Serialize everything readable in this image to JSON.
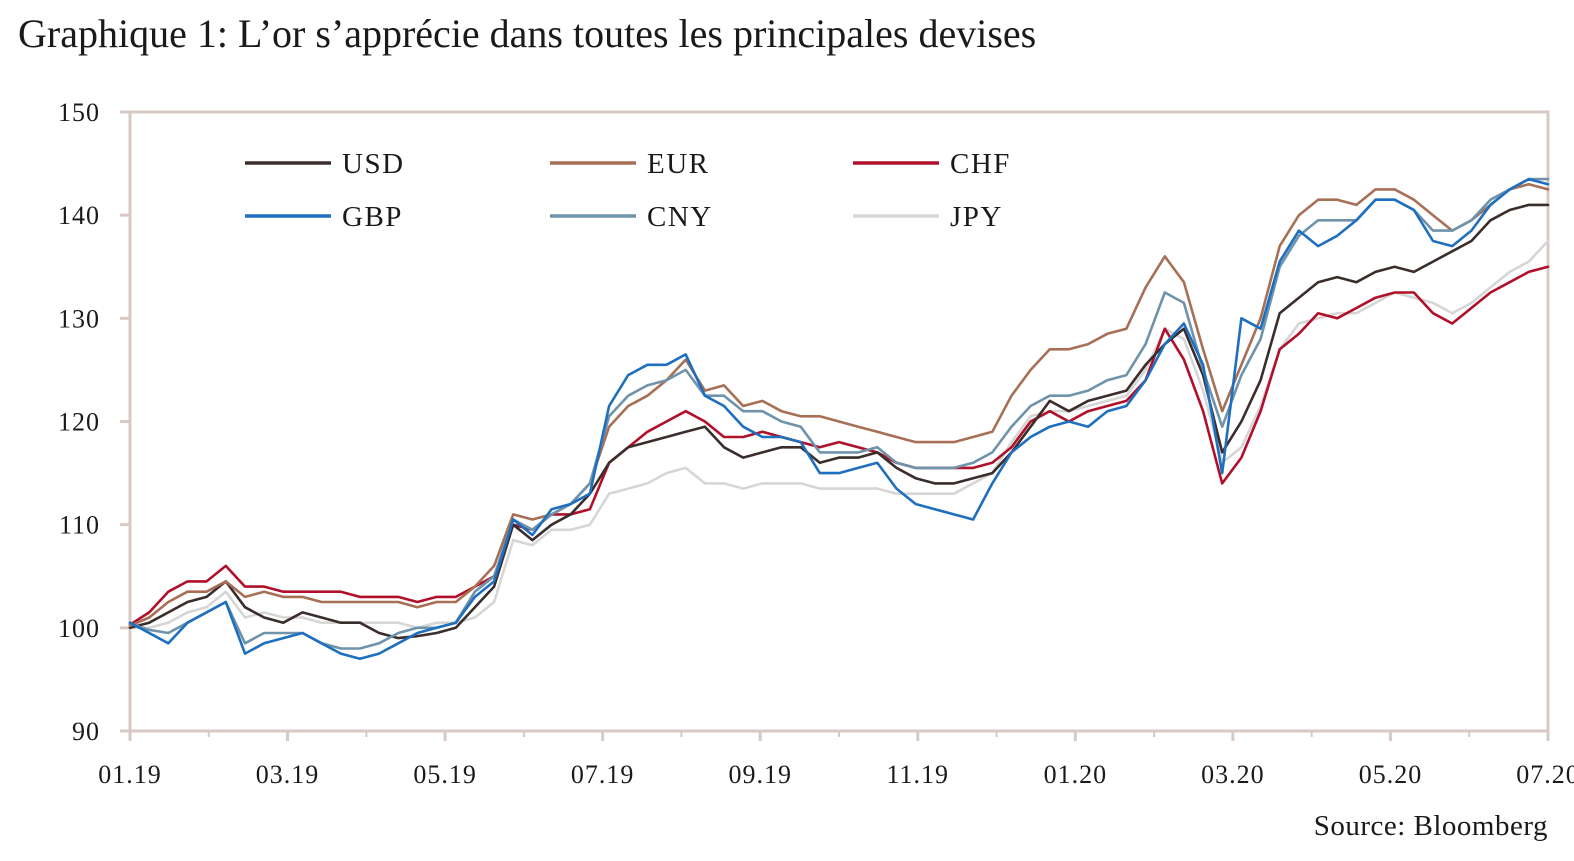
{
  "title": "Graphique 1: L’or s’apprécie dans toutes les principales devises",
  "source": "Source: Bloomberg",
  "colors": {
    "frame": "#d7c9c3",
    "USD": "#3a2d2b",
    "EUR": "#a76f55",
    "CHF": "#b0102a",
    "GBP": "#1f6fbf",
    "CNY": "#6f93ab",
    "JPY": "#d6d6d6"
  },
  "chart_data": {
    "type": "line",
    "title": "Graphique 1: L’or s’apprécie dans toutes les principales devises",
    "xlabel": "",
    "ylabel": "",
    "ylim": [
      90,
      150
    ],
    "yticks": [
      90,
      100,
      110,
      120,
      130,
      140,
      150
    ],
    "x_tick_labels": [
      "01.19",
      "03.19",
      "05.19",
      "07.19",
      "09.19",
      "11.19",
      "01.20",
      "03.20",
      "05.20",
      "07.20"
    ],
    "x": [
      0,
      0.25,
      0.5,
      0.75,
      1,
      1.25,
      1.5,
      1.75,
      2,
      2.25,
      2.5,
      2.75,
      3,
      3.25,
      3.5,
      3.75,
      4,
      4.25,
      4.5,
      4.75,
      5,
      5.25,
      5.5,
      5.75,
      6,
      6.25,
      6.5,
      6.75,
      7,
      7.25,
      7.5,
      7.75,
      8,
      8.25,
      8.5,
      8.75,
      9,
      9.25,
      9.5,
      9.75,
      10,
      10.25,
      10.5,
      10.75,
      11,
      11.25,
      11.5,
      11.75,
      12,
      12.25,
      12.5,
      12.75,
      13,
      13.25,
      13.5,
      13.75,
      14,
      14.25,
      14.5,
      14.75,
      15,
      15.25,
      15.5,
      15.75,
      16,
      16.25,
      16.5,
      16.75,
      17,
      17.25,
      17.5,
      17.75,
      18,
      18.25,
      18.5
    ],
    "legend_position": "top-left",
    "legend_columns": 3,
    "grid": false,
    "series": [
      {
        "name": "USD",
        "values": [
          100,
          100.5,
          101.5,
          102.5,
          103,
          104.5,
          102,
          101,
          100.5,
          101.5,
          101,
          100.5,
          100.5,
          99.5,
          99,
          99.2,
          99.5,
          100,
          102,
          104,
          110,
          108.5,
          110,
          111,
          113,
          116,
          117.5,
          118,
          118.5,
          119,
          119.5,
          117.5,
          116.5,
          117,
          117.5,
          117.5,
          116,
          116.5,
          116.5,
          117,
          115.5,
          114.5,
          114,
          114,
          114.5,
          115,
          117,
          119.5,
          122,
          121,
          122,
          122.5,
          123,
          125.5,
          127.5,
          129,
          124.5,
          117,
          120,
          124,
          130.5,
          132,
          133.5,
          134,
          133.5,
          134.5,
          135,
          134.5,
          135.5,
          136.5,
          137.5,
          139.5,
          140.5,
          141,
          141
        ]
      },
      {
        "name": "EUR",
        "values": [
          100.2,
          101,
          102.5,
          103.5,
          103.5,
          104.5,
          103,
          103.5,
          103,
          103,
          102.5,
          102.5,
          102.5,
          102.5,
          102.5,
          102,
          102.5,
          102.5,
          104,
          106,
          111,
          110.5,
          111,
          112,
          114,
          119.5,
          121.5,
          122.5,
          124,
          126,
          123,
          123.5,
          121.5,
          122,
          121,
          120.5,
          120.5,
          120,
          119.5,
          119,
          118.5,
          118,
          118,
          118,
          118.5,
          119,
          122.5,
          125,
          127,
          127,
          127.5,
          128.5,
          129,
          133,
          136,
          133.5,
          127,
          121,
          125.5,
          130,
          137,
          140,
          141.5,
          141.5,
          141,
          142.5,
          142.5,
          141.5,
          140,
          138.5,
          139.5,
          141,
          142.5,
          143,
          142.5
        ]
      },
      {
        "name": "CHF",
        "values": [
          100.3,
          101.5,
          103.5,
          104.5,
          104.5,
          106,
          104,
          104,
          103.5,
          103.5,
          103.5,
          103.5,
          103,
          103,
          103,
          102.5,
          103,
          103,
          104,
          105,
          110,
          109.5,
          111,
          111,
          111.5,
          116,
          117.5,
          119,
          120,
          121,
          120,
          118.5,
          118.5,
          119,
          118.5,
          118,
          117.5,
          118,
          117.5,
          117,
          116,
          115.5,
          115.5,
          115.5,
          115.5,
          116,
          117.5,
          120,
          121,
          120,
          121,
          121.5,
          122,
          124,
          129,
          126,
          121,
          114,
          116.5,
          121,
          127,
          128.5,
          130.5,
          130,
          131,
          132,
          132.5,
          132.5,
          130.5,
          129.5,
          131,
          132.5,
          133.5,
          134.5,
          135
        ]
      },
      {
        "name": "GBP",
        "values": [
          100.5,
          99.5,
          98.5,
          100.5,
          101.5,
          102.5,
          97.5,
          98.5,
          99,
          99.5,
          98.5,
          97.5,
          97,
          97.5,
          98.5,
          99.5,
          100,
          100.5,
          103,
          104.5,
          110.5,
          109,
          111.5,
          112,
          113,
          121.5,
          124.5,
          125.5,
          125.5,
          126.5,
          122.5,
          121.5,
          119.5,
          118.5,
          118.5,
          118,
          115,
          115,
          115.5,
          116,
          113.5,
          112,
          111.5,
          111,
          110.5,
          114,
          117,
          118.5,
          119.5,
          120,
          119.5,
          121,
          121.5,
          124,
          127.5,
          129.5,
          125.5,
          115,
          130,
          129,
          135.5,
          138.5,
          137,
          138,
          139.5,
          141.5,
          141.5,
          140.5,
          137.5,
          137,
          138.5,
          141,
          142.5,
          143.5,
          143
        ]
      },
      {
        "name": "CNY",
        "values": [
          100.4,
          99.8,
          99.5,
          100.5,
          101.5,
          102.5,
          98.5,
          99.5,
          99.5,
          99.5,
          98.5,
          98,
          98,
          98.5,
          99.5,
          100,
          100,
          100.5,
          103.5,
          105,
          110.5,
          109.5,
          111,
          112,
          114,
          120.5,
          122.5,
          123.5,
          124,
          125,
          122.5,
          122.5,
          121,
          121,
          120,
          119.5,
          117,
          117,
          117,
          117.5,
          116,
          115.5,
          115.5,
          115.5,
          116,
          117,
          119.5,
          121.5,
          122.5,
          122.5,
          123,
          124,
          124.5,
          127.5,
          132.5,
          131.5,
          125,
          119.5,
          124.5,
          128,
          135,
          138,
          139.5,
          139.5,
          139.5,
          141.5,
          141.5,
          140.5,
          138.5,
          138.5,
          139.5,
          141.5,
          142.5,
          143.5,
          143.5
        ]
      },
      {
        "name": "JPY",
        "values": [
          100,
          100,
          100.5,
          101.5,
          102,
          103.5,
          101,
          101.5,
          101,
          101,
          100.5,
          100.5,
          100.5,
          100.5,
          100.5,
          100,
          100.5,
          100.5,
          101,
          102.5,
          108.5,
          108,
          109.5,
          109.5,
          110,
          113,
          113.5,
          114,
          115,
          115.5,
          114,
          114,
          113.5,
          114,
          114,
          114,
          113.5,
          113.5,
          113.5,
          113.5,
          113,
          113,
          113,
          113,
          114,
          115,
          118,
          120.5,
          121,
          121,
          121.5,
          122,
          122.5,
          125,
          129,
          128,
          123,
          116,
          117.5,
          121.5,
          127,
          129.5,
          130,
          130.5,
          130.5,
          131.5,
          132.5,
          132,
          131.5,
          130.5,
          131.5,
          133,
          134.5,
          135.5,
          137.5
        ]
      }
    ]
  }
}
